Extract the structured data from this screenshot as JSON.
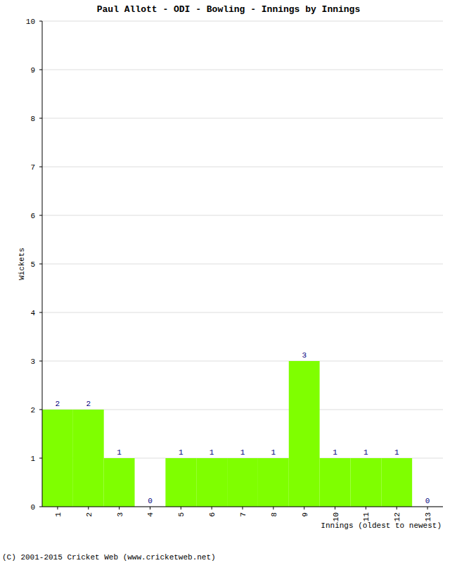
{
  "chart_data": {
    "type": "bar",
    "title": "Paul Allott - ODI - Bowling - Innings by Innings",
    "xlabel": "Innings (oldest to newest)",
    "ylabel": "Wickets",
    "footer": "(C) 2001-2015 Cricket Web (www.cricketweb.net)",
    "categories": [
      "1",
      "2",
      "3",
      "4",
      "5",
      "6",
      "7",
      "8",
      "9",
      "10",
      "11",
      "12",
      "13"
    ],
    "values": [
      2,
      2,
      1,
      0,
      1,
      1,
      1,
      1,
      3,
      1,
      1,
      1,
      0
    ],
    "color": "#7fff00",
    "ylim": [
      0,
      10
    ],
    "yticks": [
      0,
      1,
      2,
      3,
      4,
      5,
      6,
      7,
      8,
      9,
      10
    ],
    "grid": true,
    "data_labels": true
  }
}
